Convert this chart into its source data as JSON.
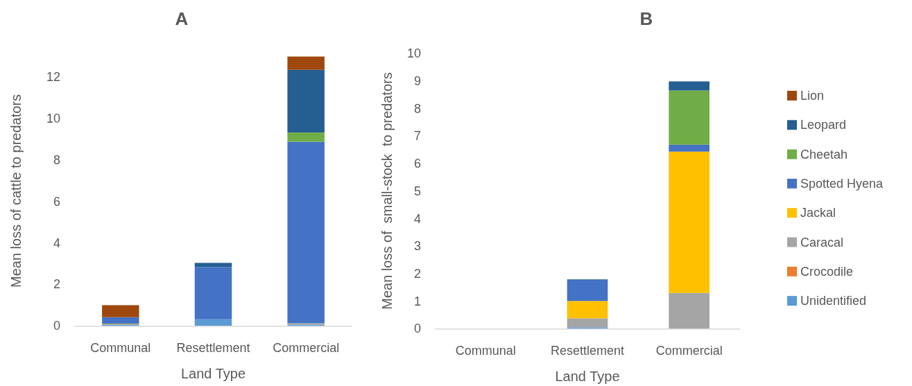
{
  "chart_data": [
    {
      "type": "bar",
      "title": "A",
      "xlabel": "Land Type",
      "ylabel": "Mean loss of cattle to predators",
      "categories": [
        "Communal",
        "Resettlement",
        "Commercial"
      ],
      "stacked": true,
      "ylim": [
        0,
        13
      ],
      "yticks": [
        0,
        2,
        4,
        6,
        8,
        10,
        12
      ],
      "grid": false,
      "legend": false,
      "series": [
        {
          "color": "#5b9bd5",
          "values": [
            0.06,
            0.31,
            0.05
          ]
        },
        {
          "color": "#a5a5a5",
          "values": [
            0,
            0,
            0.07
          ]
        },
        {
          "color": "#ffc000",
          "values": [
            0.03,
            0,
            0
          ]
        },
        {
          "color": "#4472c4",
          "values": [
            0.32,
            2.52,
            8.75
          ]
        },
        {
          "color": "#70ad47",
          "values": [
            0,
            0,
            0.45
          ]
        },
        {
          "color": "#255e91",
          "values": [
            0,
            0.2,
            3.02
          ]
        },
        {
          "color": "#9e480e",
          "values": [
            0.58,
            0,
            0.64
          ]
        }
      ]
    },
    {
      "type": "bar",
      "title": "B",
      "xlabel": "Land Type",
      "ylabel": "Mean loss of  small-stock  to predators",
      "categories": [
        "Communal",
        "Resettlement",
        "Commercial"
      ],
      "stacked": true,
      "ylim": [
        0,
        10
      ],
      "yticks": [
        0,
        1,
        2,
        3,
        4,
        5,
        6,
        7,
        8,
        9,
        10
      ],
      "grid": false,
      "legend": "right",
      "series": [
        {
          "name": "Unidentified",
          "color": "#5b9bd5",
          "values": [
            0,
            0.04,
            0
          ]
        },
        {
          "name": "Crocodile",
          "color": "#ed7d31",
          "values": [
            0,
            0,
            0
          ]
        },
        {
          "name": "Caracal",
          "color": "#a5a5a5",
          "values": [
            0,
            0.33,
            1.29
          ]
        },
        {
          "name": "Jackal",
          "color": "#ffc000",
          "values": [
            0,
            0.63,
            5.14
          ]
        },
        {
          "name": "Spotted Hyena",
          "color": "#4472c4",
          "values": [
            0,
            0.77,
            0.25
          ]
        },
        {
          "name": "Cheetah",
          "color": "#70ad47",
          "values": [
            0,
            0,
            1.97
          ]
        },
        {
          "name": "Leopard",
          "color": "#255e91",
          "values": [
            0,
            0.02,
            0.33
          ]
        },
        {
          "name": "Lion",
          "color": "#9e480e",
          "values": [
            0,
            0,
            0
          ]
        }
      ]
    }
  ]
}
